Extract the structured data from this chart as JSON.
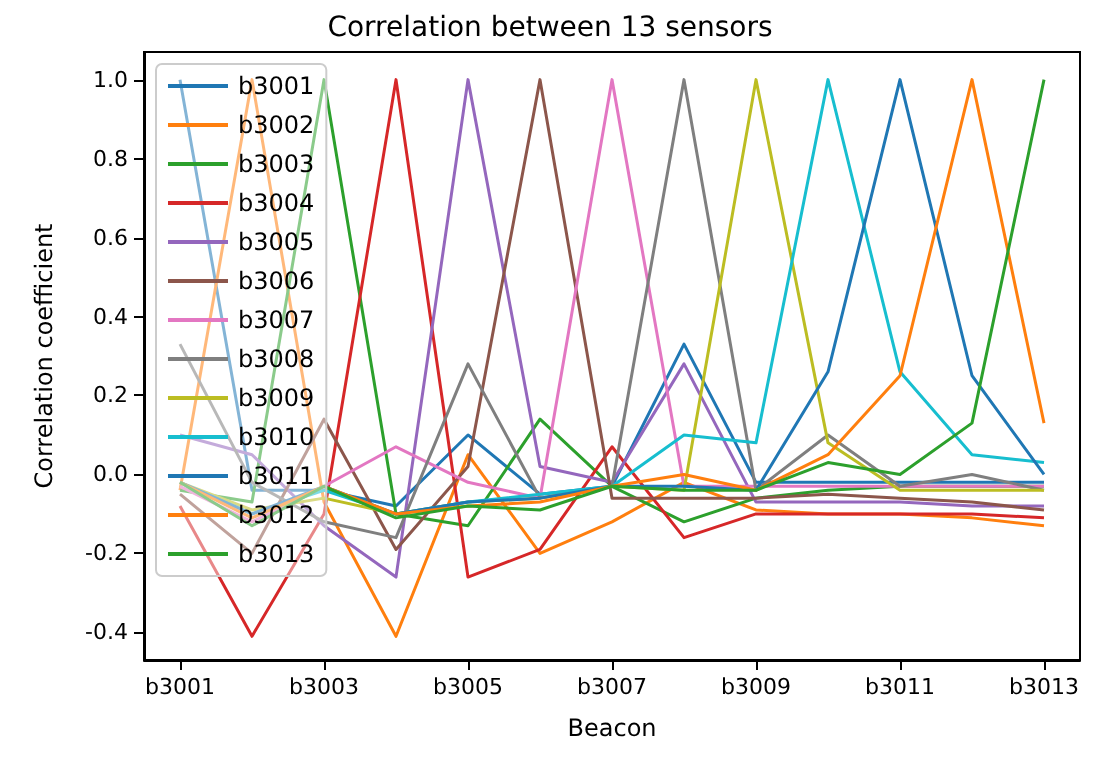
{
  "chart_data": {
    "type": "line",
    "title": "Correlation between 13 sensors",
    "xlabel": "Beacon",
    "ylabel": "Correlation coefficient",
    "categories": [
      "b3001",
      null,
      "b3003",
      null,
      "b3005",
      null,
      "b3007",
      null,
      "b3009",
      null,
      "b3011",
      null,
      "b3013"
    ],
    "ylim": [
      -0.47,
      1.07
    ],
    "yticks": [
      {
        "value": -0.4,
        "label": "-0.4"
      },
      {
        "value": -0.2,
        "label": "-0.2"
      },
      {
        "value": 0,
        "label": "0.0"
      },
      {
        "value": 0.2,
        "label": "0.2"
      },
      {
        "value": 0.4,
        "label": "0.4"
      },
      {
        "value": 0.6,
        "label": "0.6"
      },
      {
        "value": 0.8,
        "label": "0.8"
      },
      {
        "value": 1,
        "label": "1.0"
      }
    ],
    "grid": false,
    "legend": "top left",
    "marker": "none",
    "line_style": "solid",
    "series": [
      {
        "name": "b3001",
        "color": "#1f77b4",
        "values": [
          1,
          -0.04,
          -0.04,
          -0.08,
          0.1,
          -0.05,
          -0.03,
          0.33,
          -0.02,
          -0.02,
          -0.02,
          -0.02,
          -0.02
        ]
      },
      {
        "name": "b3002",
        "color": "#ff7f0e",
        "values": [
          -0.04,
          1,
          -0.07,
          -0.41,
          0.05,
          -0.2,
          -0.12,
          -0.02,
          -0.09,
          -0.1,
          -0.1,
          -0.11,
          -0.13
        ]
      },
      {
        "name": "b3003",
        "color": "#2ca02c",
        "values": [
          -0.04,
          -0.07,
          1,
          -0.1,
          -0.13,
          0.14,
          -0.03,
          -0.12,
          -0.06,
          -0.04,
          -0.03,
          -0.03,
          -0.03
        ]
      },
      {
        "name": "b3004",
        "color": "#d62728",
        "values": [
          -0.08,
          -0.41,
          -0.1,
          1,
          -0.26,
          -0.19,
          0.07,
          -0.16,
          -0.1,
          -0.1,
          -0.1,
          -0.1,
          -0.11
        ]
      },
      {
        "name": "b3005",
        "color": "#9467bd",
        "values": [
          0.1,
          0.05,
          -0.13,
          -0.26,
          1,
          0.02,
          -0.02,
          0.28,
          -0.07,
          -0.07,
          -0.07,
          -0.08,
          -0.08
        ]
      },
      {
        "name": "b3006",
        "color": "#8c564b",
        "values": [
          -0.05,
          -0.2,
          0.14,
          -0.19,
          0.02,
          1,
          -0.06,
          -0.06,
          -0.06,
          -0.05,
          -0.06,
          -0.07,
          -0.09
        ]
      },
      {
        "name": "b3007",
        "color": "#e377c2",
        "values": [
          -0.03,
          -0.12,
          -0.03,
          0.07,
          -0.02,
          -0.06,
          1,
          -0.03,
          -0.03,
          -0.03,
          -0.03,
          -0.03,
          -0.03
        ]
      },
      {
        "name": "b3008",
        "color": "#7f7f7f",
        "values": [
          0.33,
          -0.02,
          -0.12,
          -0.16,
          0.28,
          -0.06,
          -0.03,
          1,
          -0.04,
          0.1,
          -0.03,
          0.0,
          -0.04
        ]
      },
      {
        "name": "b3009",
        "color": "#bcbd22",
        "values": [
          -0.02,
          -0.09,
          -0.06,
          -0.1,
          -0.07,
          -0.06,
          -0.03,
          -0.04,
          1,
          0.08,
          -0.04,
          -0.04,
          -0.04
        ]
      },
      {
        "name": "b3010",
        "color": "#17becf",
        "values": [
          -0.02,
          -0.1,
          -0.04,
          -0.1,
          -0.07,
          -0.05,
          -0.03,
          0.1,
          0.08,
          1,
          0.26,
          0.05,
          0.03
        ]
      },
      {
        "name": "b3011",
        "color": "#1f77b4",
        "values": [
          -0.02,
          -0.1,
          -0.03,
          -0.1,
          -0.07,
          -0.06,
          -0.03,
          -0.03,
          -0.04,
          0.26,
          1,
          0.25,
          0.0
        ]
      },
      {
        "name": "b3012",
        "color": "#ff7f0e",
        "values": [
          -0.02,
          -0.11,
          -0.03,
          -0.1,
          -0.08,
          -0.07,
          -0.03,
          0.0,
          -0.04,
          0.05,
          0.25,
          1,
          0.13
        ]
      },
      {
        "name": "b3013",
        "color": "#2ca02c",
        "values": [
          -0.02,
          -0.13,
          -0.03,
          -0.11,
          -0.08,
          -0.09,
          -0.03,
          -0.04,
          -0.04,
          0.03,
          0.0,
          0.13,
          1
        ]
      }
    ]
  }
}
